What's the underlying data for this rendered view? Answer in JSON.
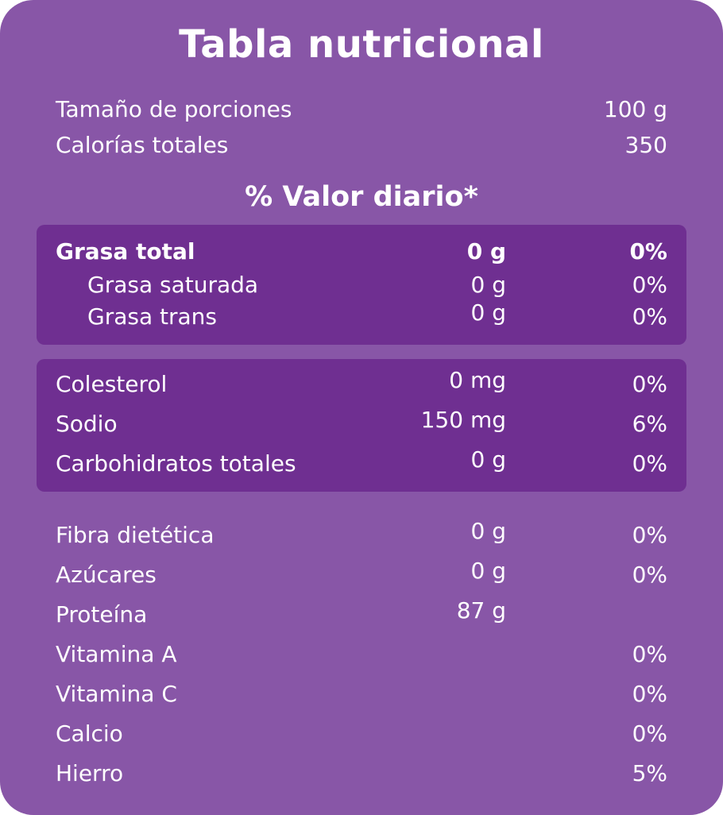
{
  "title": "Tabla nutricional",
  "serving": {
    "label": "Tamaño de porciones",
    "value": "100 g"
  },
  "calories": {
    "label": "Calorías totales",
    "value": "350"
  },
  "subtitle": "% Valor diario*",
  "fats": [
    {
      "label": "Grasa total",
      "amount": "0 g",
      "pct": "0%"
    },
    {
      "label": "Grasa saturada",
      "amount": "0 g",
      "pct": "0%"
    },
    {
      "label": "Grasa trans",
      "amount": "0 g",
      "pct": "0%"
    }
  ],
  "middle": [
    {
      "label": "Colesterol",
      "amount": "0 mg",
      "pct": "0%"
    },
    {
      "label": "Sodio",
      "amount": "150 mg",
      "pct": "6%"
    },
    {
      "label": "Carbohidratos totales",
      "amount": "0 g",
      "pct": "0%"
    }
  ],
  "others": [
    {
      "label": "Fibra dietética",
      "amount": "0 g",
      "pct": "0%"
    },
    {
      "label": "Azúcares",
      "amount": "0 g",
      "pct": "0%"
    },
    {
      "label": "Proteína",
      "amount": "87 g",
      "pct": ""
    },
    {
      "label": "Vitamina A",
      "amount": "",
      "pct": "0%"
    },
    {
      "label": "Vitamina C",
      "amount": "",
      "pct": "0%"
    },
    {
      "label": "Calcio",
      "amount": "",
      "pct": "0%"
    },
    {
      "label": "Hierro",
      "amount": "",
      "pct": "5%"
    }
  ],
  "colors": {
    "card": "#8856a7",
    "box": "#6f2f91",
    "text": "#ffffff"
  }
}
